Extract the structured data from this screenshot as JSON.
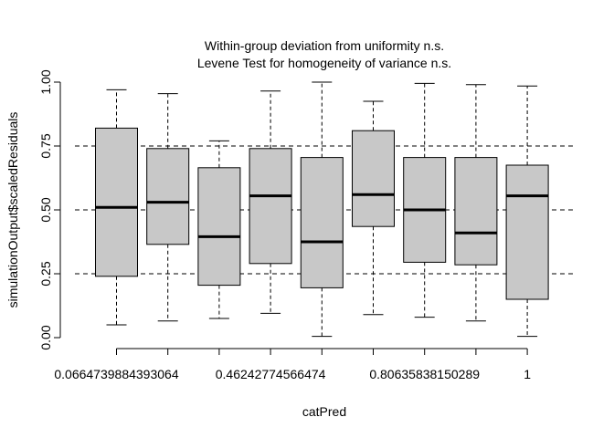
{
  "chart_data": {
    "type": "box",
    "title_lines": [
      "Within-group deviation from uniformity n.s.",
      "Levene Test for homogeneity of variance n.s."
    ],
    "xlabel": "catPred",
    "ylabel": "simulationOutput$scaledResiduals",
    "ylim": [
      0,
      1
    ],
    "y_ticks": [
      0.0,
      0.25,
      0.5,
      0.75,
      1.0
    ],
    "y_tick_labels": [
      "0.00",
      "0.25",
      "0.50",
      "0.75",
      "1.00"
    ],
    "x_tick_labels": [
      {
        "index": 0,
        "label": "0.0664739884393064"
      },
      {
        "index": 3,
        "label": "0.46242774566474"
      },
      {
        "index": 6,
        "label": "0.80635838150289"
      },
      {
        "index": 8,
        "label": "1"
      }
    ],
    "reference_lines": [
      0.25,
      0.5,
      0.75
    ],
    "box_fill": "#c8c8c8",
    "boxes": [
      {
        "min": 0.05,
        "q1": 0.24,
        "median": 0.51,
        "q3": 0.82,
        "max": 0.97
      },
      {
        "min": 0.065,
        "q1": 0.365,
        "median": 0.53,
        "q3": 0.74,
        "max": 0.955
      },
      {
        "min": 0.075,
        "q1": 0.205,
        "median": 0.395,
        "q3": 0.665,
        "max": 0.77
      },
      {
        "min": 0.095,
        "q1": 0.29,
        "median": 0.555,
        "q3": 0.74,
        "max": 0.965
      },
      {
        "min": 0.005,
        "q1": 0.195,
        "median": 0.375,
        "q3": 0.705,
        "max": 1.0
      },
      {
        "min": 0.09,
        "q1": 0.435,
        "median": 0.56,
        "q3": 0.81,
        "max": 0.925
      },
      {
        "min": 0.08,
        "q1": 0.295,
        "median": 0.5,
        "q3": 0.705,
        "max": 0.995
      },
      {
        "min": 0.065,
        "q1": 0.285,
        "median": 0.41,
        "q3": 0.705,
        "max": 0.99
      },
      {
        "min": 0.005,
        "q1": 0.15,
        "median": 0.555,
        "q3": 0.675,
        "max": 0.985
      }
    ]
  }
}
